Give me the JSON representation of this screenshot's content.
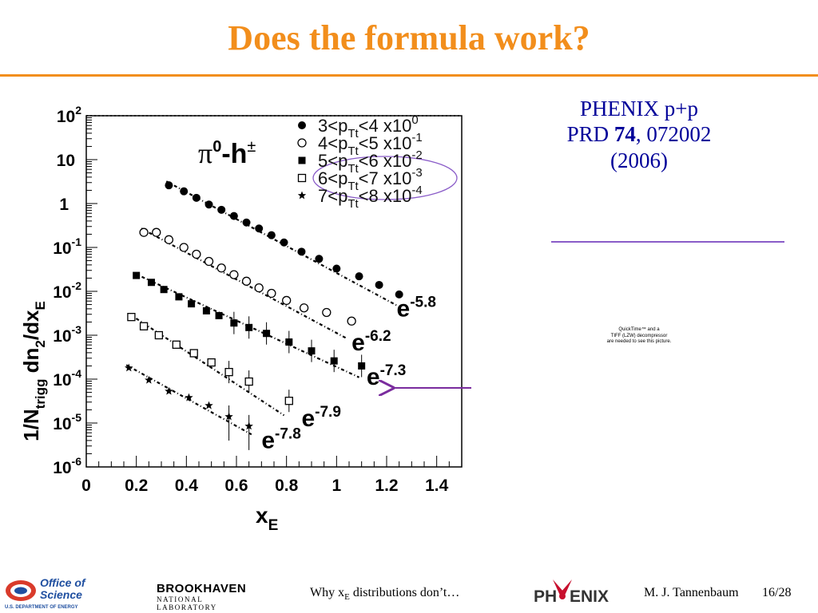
{
  "slide": {
    "title": "Does the formula work?",
    "reference": {
      "line1": "PHENIX p+p",
      "line2_prefix": "PRD ",
      "line2_bold": "74",
      "line2_suffix": ", 072002",
      "line3": "(2006)"
    },
    "quicktime_placeholder": [
      "QuickTime™ and a",
      "TIFF (LZW) decompressor",
      "are needed to see this picture."
    ],
    "footer": {
      "office_line1": "Office of",
      "office_line2": "Science",
      "office_line3": "U.S. DEPARTMENT OF ENERGY",
      "bnl_name": "BROOKHAVEN",
      "bnl_sub": "NATIONAL LABORATORY",
      "text_prefix": "Why x",
      "text_sub": "E",
      "text_suffix": " distributions don’t…",
      "phenix_logo_left": "PH",
      "phenix_logo_right": "ENIX",
      "author": "M. J. Tannenbaum",
      "slide_number": "16/28"
    },
    "colors": {
      "title": "#f28e1c",
      "reference": "#000099",
      "ellipse": "#8a5cc8",
      "arrow": "#7a2c9e"
    }
  },
  "chart_data": {
    "type": "scatter",
    "y_scale": "log",
    "xlim": [
      0,
      1.5
    ],
    "ylim": [
      1e-06,
      100
    ],
    "x_ticks": [
      "0",
      "0.2",
      "0.4",
      "0.6",
      "0.8",
      "1",
      "1.2",
      "1.4"
    ],
    "x_tick_values": [
      0,
      0.2,
      0.4,
      0.6,
      0.8,
      1,
      1.2,
      1.4
    ],
    "y_ticks": [
      {
        "base": "10",
        "exp": "2",
        "value": 100
      },
      {
        "base": "10",
        "exp": "",
        "value": 10
      },
      {
        "base": "1",
        "exp": "",
        "value": 1
      },
      {
        "base": "10",
        "exp": "-1",
        "value": 0.1
      },
      {
        "base": "10",
        "exp": "-2",
        "value": 0.01
      },
      {
        "base": "10",
        "exp": "-3",
        "value": 0.001
      },
      {
        "base": "10",
        "exp": "-4",
        "value": 0.0001
      },
      {
        "base": "10",
        "exp": "-5",
        "value": 1e-05
      },
      {
        "base": "10",
        "exp": "-6",
        "value": 1e-06
      }
    ],
    "xlabel": {
      "main": "x",
      "sub": "E"
    },
    "ylabel": {
      "p1": "1/N",
      "sub1": "trigg",
      "p2": " dn",
      "sub2": "2",
      "p3": "/dx",
      "sub3": "E"
    },
    "annotation": {
      "pi": "π",
      "pi_sup": "0",
      "dash": "-h",
      "h_sup": "±"
    },
    "series": [
      {
        "name": "3<pTt<4 x10^0",
        "legend": {
          "a": "3<p",
          "sub": "Tt",
          "b": "<4 x10",
          "sup": "0"
        },
        "marker": "filled-circle",
        "x": [
          0.33,
          0.39,
          0.44,
          0.49,
          0.54,
          0.59,
          0.64,
          0.69,
          0.74,
          0.79,
          0.86,
          0.93,
          1.0,
          1.09,
          1.17,
          1.25
        ],
        "y": [
          2.6,
          1.9,
          1.35,
          0.95,
          0.72,
          0.52,
          0.37,
          0.27,
          0.19,
          0.13,
          0.08,
          0.055,
          0.033,
          0.022,
          0.014,
          0.0085
        ],
        "fit": {
          "x1": 0.32,
          "x2": 1.24,
          "y1": 3.2,
          "y2": 0.0048,
          "label": "-5.8",
          "label_x": 1.24,
          "label_y": 0.0027
        }
      },
      {
        "name": "4<pTt<5 x10^-1",
        "legend": {
          "a": "4<p",
          "sub": "Tt",
          "b": "<5 x10",
          "sup": "-1"
        },
        "marker": "open-circle",
        "x": [
          0.23,
          0.28,
          0.33,
          0.39,
          0.44,
          0.49,
          0.54,
          0.59,
          0.64,
          0.69,
          0.74,
          0.8,
          0.87,
          0.96,
          1.06
        ],
        "y": [
          0.22,
          0.22,
          0.15,
          0.1,
          0.07,
          0.048,
          0.034,
          0.024,
          0.017,
          0.012,
          0.009,
          0.0062,
          0.0042,
          0.0033,
          0.0021
        ],
        "fit": {
          "x1": 0.22,
          "x2": 1.04,
          "y1": 0.27,
          "y2": 0.00085,
          "label": "-6.2",
          "label_x": 1.06,
          "label_y": 0.00045
        }
      },
      {
        "name": "5<pTt<6 x10^-2",
        "legend": {
          "a": "5<p",
          "sub": "Tt",
          "b": "<6 x10",
          "sup": "-2"
        },
        "marker": "filled-square",
        "x": [
          0.2,
          0.26,
          0.31,
          0.37,
          0.42,
          0.48,
          0.53,
          0.59,
          0.65,
          0.72,
          0.81,
          0.9,
          0.99,
          1.1
        ],
        "y": [
          0.023,
          0.016,
          0.011,
          0.0075,
          0.0052,
          0.0036,
          0.0028,
          0.0019,
          0.0015,
          0.0011,
          0.0007,
          0.00044,
          0.00026,
          0.0002
        ],
        "fit": {
          "x1": 0.19,
          "x2": 1.09,
          "y1": 0.026,
          "y2": 0.00011,
          "label": "-7.3",
          "label_x": 1.12,
          "label_y": 7.5e-05
        }
      },
      {
        "name": "6<pTt<7 x10^-3",
        "legend": {
          "a": "6<p",
          "sub": "Tt",
          "b": "<7 x10",
          "sup": "-3"
        },
        "marker": "open-square",
        "x": [
          0.18,
          0.23,
          0.29,
          0.36,
          0.43,
          0.5,
          0.57,
          0.65,
          0.81
        ],
        "y": [
          0.0026,
          0.0016,
          0.001,
          0.00061,
          0.00039,
          0.00024,
          0.000145,
          8.8e-05,
          3.2e-05
        ],
        "fit": {
          "x1": 0.17,
          "x2": 0.79,
          "y1": 0.0031,
          "y2": 1.5e-05,
          "label": "-7.9",
          "label_x": 0.86,
          "label_y": 8.5e-06
        }
      },
      {
        "name": "7<pTt<8 x10^-4",
        "legend": {
          "a": "7<p",
          "sub": "Tt",
          "b": "<8 x10",
          "sup": "-4"
        },
        "marker": "star",
        "x": [
          0.17,
          0.25,
          0.33,
          0.41,
          0.49,
          0.57,
          0.65
        ],
        "y": [
          0.00018,
          9.5e-05,
          5.3e-05,
          3.8e-05,
          2.5e-05,
          1.4e-05,
          8.5e-06
        ],
        "fit": {
          "x1": 0.16,
          "x2": 0.66,
          "y1": 0.00021,
          "y2": 5.5e-06,
          "label": "-7.8",
          "label_x": 0.7,
          "label_y": 2.7e-06
        }
      }
    ]
  }
}
